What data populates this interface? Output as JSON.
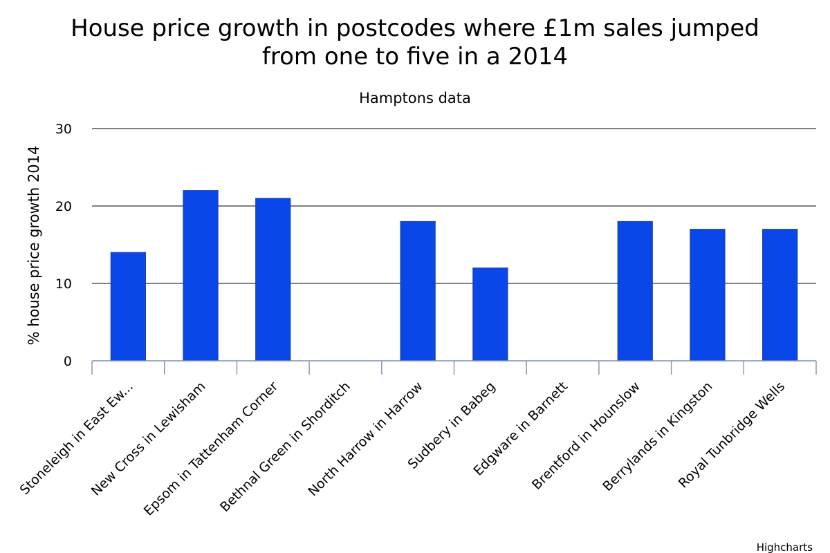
{
  "chart_data": {
    "type": "bar",
    "title_line1": "House price growth in postcodes where £1m sales jumped",
    "title_line2": "from one to five in a 2014",
    "subtitle": "Hamptons data",
    "xlabel": "",
    "ylabel": "% house price growth 2014",
    "ylim": [
      0,
      30
    ],
    "yticks": [
      "0",
      "10",
      "20",
      "30"
    ],
    "categories": [
      "Stoneleigh in East Ew...",
      "New Cross in Lewisham",
      "Epsom in Tattenham Corner",
      "Bethnal Green in Shorditch",
      "North Harrow in Harrow",
      "Sudbery in Babeg",
      "Edgware in Barnett",
      "Brentford in Hounslow",
      "Berrylands in Kingston",
      "Royal Tunbridge Wells"
    ],
    "values": [
      14,
      22,
      21,
      0,
      18,
      12,
      0,
      18,
      17,
      17
    ],
    "grid": true,
    "legend": "none",
    "bar_color": "#0a47e8",
    "credits": "Highcharts"
  }
}
